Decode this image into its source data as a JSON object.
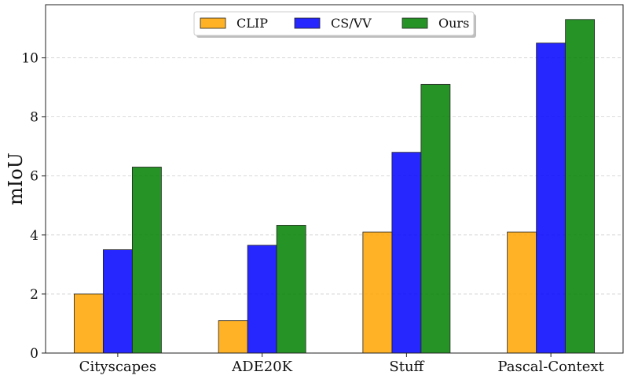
{
  "chart_data": {
    "type": "bar",
    "categories": [
      "Cityscapes",
      "ADE20K",
      "Stuff",
      "Pascal-Context"
    ],
    "series": [
      {
        "name": "CLIP",
        "color": "#ffa500",
        "values": [
          2.0,
          1.1,
          4.1,
          4.1
        ]
      },
      {
        "name": "CS/VV",
        "color": "#0000ff",
        "values": [
          3.5,
          3.65,
          6.8,
          10.5
        ]
      },
      {
        "name": "Ours",
        "color": "#008000",
        "values": [
          6.3,
          4.33,
          9.1,
          11.3
        ]
      }
    ],
    "xlabel": "",
    "ylabel": "mIoU",
    "ylim": [
      0,
      11.8
    ],
    "yticks": [
      0,
      2,
      4,
      6,
      8,
      10
    ],
    "grid": "horizontal-dashed",
    "legend_position": "top-center"
  }
}
